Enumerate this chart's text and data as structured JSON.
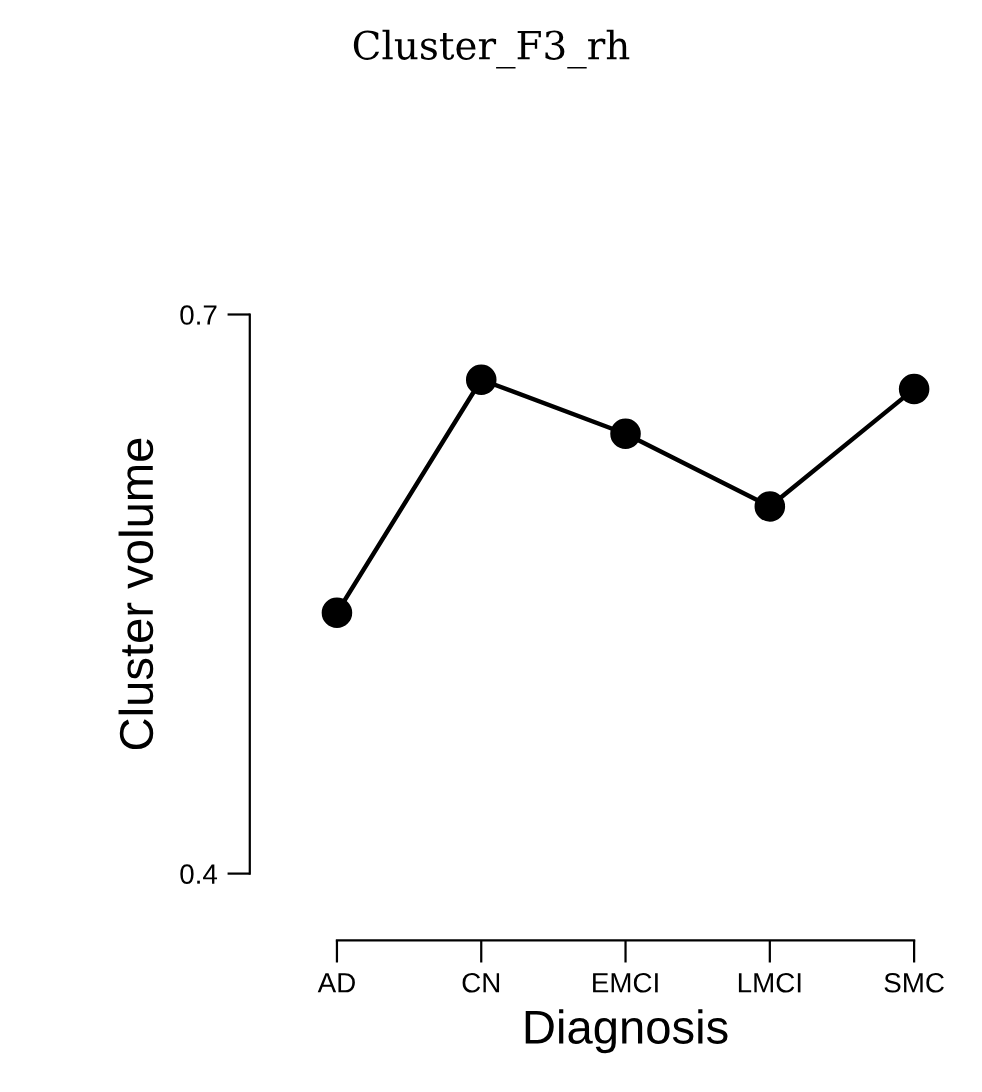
{
  "chart_data": {
    "type": "line",
    "title": "Cluster_F3_rh",
    "xlabel": "Diagnosis",
    "ylabel": "Cluster volume",
    "categories": [
      "AD",
      "CN",
      "EMCI",
      "LMCI",
      "SMC"
    ],
    "series": [
      {
        "color": "#000000",
        "values": [
          0.54,
          0.665,
          0.636,
          0.597,
          0.66
        ],
        "errors": [
          0.004,
          0.004,
          0.004,
          0.004,
          0.004
        ]
      }
    ],
    "ylim": [
      0.4,
      0.7
    ],
    "yticks": [
      0.4,
      0.7
    ],
    "marker": "circle",
    "line_style": "solid",
    "grid": false,
    "legend": false
  }
}
